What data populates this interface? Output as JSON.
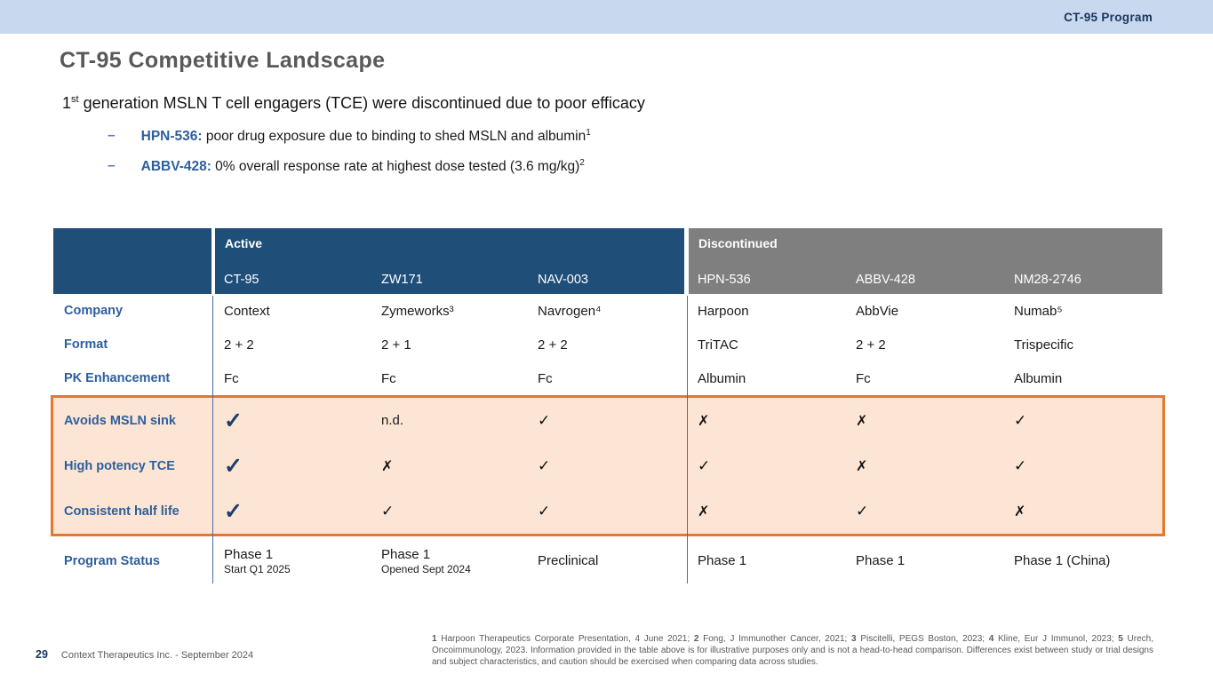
{
  "top_bar": {
    "label": "CT-95 Program"
  },
  "title": "CT-95 Competitive Landscape",
  "subtitle": {
    "prefix": "1",
    "sup": "st",
    "rest": " generation MSLN T cell engagers (TCE) were discontinued due to poor efficacy"
  },
  "bullets": [
    {
      "dash": "–",
      "name": "HPN-536:",
      "text": " poor drug exposure due to binding to shed MSLN and albumin",
      "sup": "1"
    },
    {
      "dash": "–",
      "name": "ABBV-428:",
      "text": " 0% overall response rate at highest dose tested (3.6 mg/kg)",
      "sup": "2"
    }
  ],
  "table": {
    "active_label": "Active",
    "discontinued_label": "Discontinued",
    "active_cols": [
      "CT-95",
      "ZW171",
      "NAV-003"
    ],
    "disc_cols": [
      "HPN-536",
      "ABBV-428",
      "NM28-2746"
    ],
    "info_rows": [
      {
        "label": "Company",
        "cells": [
          "Context",
          "Zymeworks³",
          "Navrogen⁴",
          "Harpoon",
          "AbbVie",
          "Numab⁵"
        ]
      },
      {
        "label": "Format",
        "cells": [
          "2 + 2",
          "2 + 1",
          "2 + 2",
          "TriTAC",
          "2 + 2",
          "Trispecific"
        ]
      },
      {
        "label": "PK Enhancement",
        "cells": [
          "Fc",
          "Fc",
          "Fc",
          "Albumin",
          "Fc",
          "Albumin"
        ]
      }
    ],
    "feature_rows": [
      {
        "label": "Avoids MSLN sink",
        "cells": [
          "check-strong",
          "nd",
          "check",
          "cross",
          "cross",
          "check"
        ]
      },
      {
        "label": "High potency TCE",
        "cells": [
          "check-strong",
          "cross",
          "check",
          "check",
          "cross",
          "check"
        ]
      },
      {
        "label": "Consistent half life",
        "cells": [
          "check-strong",
          "check",
          "check",
          "cross",
          "check",
          "cross"
        ]
      }
    ],
    "status_row": {
      "label": "Program Status",
      "cells": [
        {
          "main": "Phase 1",
          "sub": "Start Q1 2025"
        },
        {
          "main": "Phase 1",
          "sub": "Opened Sept 2024"
        },
        {
          "main": "Preclinical",
          "sub": ""
        },
        {
          "main": "Phase 1",
          "sub": ""
        },
        {
          "main": "Phase 1",
          "sub": ""
        },
        {
          "main": "Phase 1 (China)",
          "sub": ""
        }
      ]
    },
    "symbols": {
      "check": "✓",
      "cross": "✗",
      "nd": "n.d."
    }
  },
  "footer": {
    "page": "29",
    "text": "Context Therapeutics Inc. -  September 2024"
  },
  "footnotes": {
    "refs": [
      {
        "n": "1",
        "t": "Harpoon Therapeutics Corporate Presentation, 4 June 2021; "
      },
      {
        "n": "2",
        "t": "Fong, J Immunother Cancer, 2021; "
      },
      {
        "n": "3",
        "t": "Piscitelli, PEGS Boston, 2023; "
      },
      {
        "n": "4",
        "t": "Kline, Eur J Immunol, 2023; "
      },
      {
        "n": "5",
        "t": "Urech, Oncoimmunology, 2023."
      }
    ],
    "disclaimer": "Information provided in the table above is for illustrative purposes only and is not a head-to-head comparison. Differences exist between study or trial designs and subject characteristics, and caution should be exercised when comparing data across studies."
  },
  "colors": {
    "topbar_bg": "#c7d8ef",
    "navy_text": "#17365d",
    "header_blue": "#1f4e79",
    "header_gray": "#7f7f7f",
    "label_blue": "#2d5f9e",
    "highlight_border": "#e8772d",
    "highlight_fill": "#fce5d4",
    "strong_check_blue": "#1f3e6e",
    "title_gray": "#595959"
  }
}
